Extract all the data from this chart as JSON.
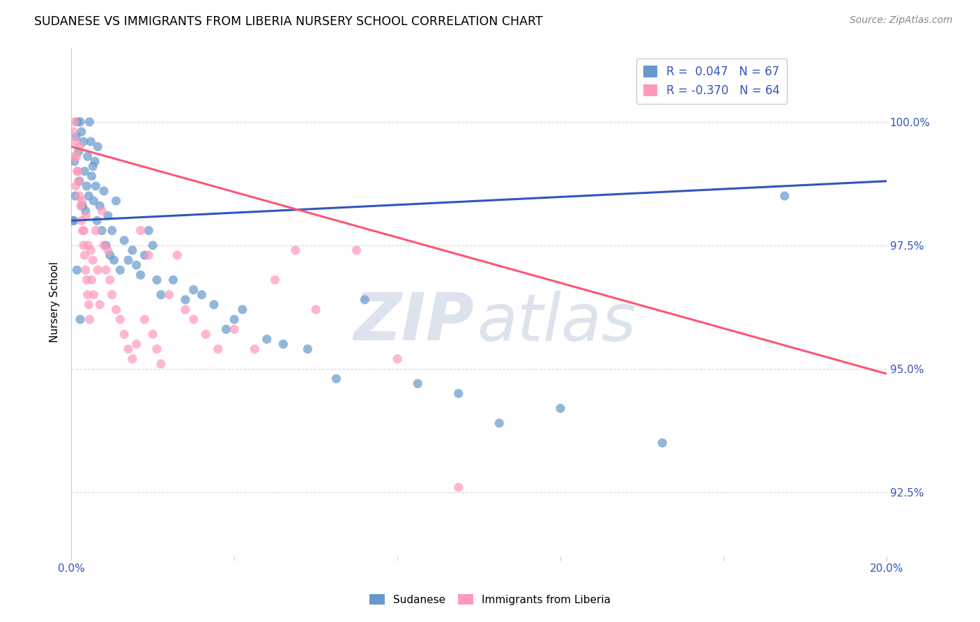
{
  "title": "SUDANESE VS IMMIGRANTS FROM LIBERIA NURSERY SCHOOL CORRELATION CHART",
  "source": "Source: ZipAtlas.com",
  "ylabel": "Nursery School",
  "ytick_values": [
    92.5,
    95.0,
    97.5,
    100.0
  ],
  "xlim": [
    0.0,
    20.0
  ],
  "ylim": [
    91.2,
    101.5
  ],
  "legend_entry1": "R =  0.047   N = 67",
  "legend_entry2": "R = -0.370   N = 64",
  "blue_color": "#6699CC",
  "pink_color": "#FF99BB",
  "trend_blue": "#3355BB",
  "trend_pink": "#FF5577",
  "blue_trend_x": [
    0.0,
    20.0
  ],
  "blue_trend_y": [
    98.0,
    98.8
  ],
  "pink_trend_x": [
    0.0,
    20.0
  ],
  "pink_trend_y": [
    99.5,
    94.9
  ],
  "blue_scatter_x": [
    0.05,
    0.08,
    0.1,
    0.12,
    0.15,
    0.18,
    0.2,
    0.22,
    0.25,
    0.28,
    0.3,
    0.33,
    0.35,
    0.38,
    0.4,
    0.43,
    0.45,
    0.48,
    0.5,
    0.53,
    0.55,
    0.58,
    0.6,
    0.63,
    0.65,
    0.7,
    0.75,
    0.8,
    0.85,
    0.9,
    0.95,
    1.0,
    1.05,
    1.1,
    1.2,
    1.3,
    1.4,
    1.5,
    1.6,
    1.7,
    1.8,
    1.9,
    2.0,
    2.1,
    2.2,
    2.5,
    2.8,
    3.0,
    3.2,
    3.5,
    3.8,
    4.0,
    4.2,
    4.8,
    5.2,
    5.8,
    6.5,
    7.2,
    8.5,
    9.5,
    10.5,
    12.0,
    14.5,
    17.5,
    0.06,
    0.14,
    0.22
  ],
  "blue_scatter_y": [
    98.0,
    99.2,
    98.5,
    99.7,
    100.0,
    99.4,
    98.8,
    100.0,
    99.8,
    98.3,
    99.6,
    99.0,
    98.2,
    98.7,
    99.3,
    98.5,
    100.0,
    99.6,
    98.9,
    99.1,
    98.4,
    99.2,
    98.7,
    98.0,
    99.5,
    98.3,
    97.8,
    98.6,
    97.5,
    98.1,
    97.3,
    97.8,
    97.2,
    98.4,
    97.0,
    97.6,
    97.2,
    97.4,
    97.1,
    96.9,
    97.3,
    97.8,
    97.5,
    96.8,
    96.5,
    96.8,
    96.4,
    96.6,
    96.5,
    96.3,
    95.8,
    96.0,
    96.2,
    95.6,
    95.5,
    95.4,
    94.8,
    96.4,
    94.7,
    94.5,
    93.9,
    94.2,
    93.5,
    98.5,
    98.0,
    97.0,
    96.0
  ],
  "pink_scatter_x": [
    0.05,
    0.08,
    0.1,
    0.13,
    0.15,
    0.18,
    0.2,
    0.23,
    0.25,
    0.28,
    0.3,
    0.33,
    0.35,
    0.38,
    0.4,
    0.43,
    0.45,
    0.48,
    0.5,
    0.53,
    0.55,
    0.6,
    0.65,
    0.7,
    0.75,
    0.8,
    0.85,
    0.9,
    0.95,
    1.0,
    1.1,
    1.2,
    1.3,
    1.4,
    1.5,
    1.6,
    1.7,
    1.8,
    1.9,
    2.0,
    2.1,
    2.2,
    2.4,
    2.6,
    2.8,
    3.0,
    3.3,
    3.6,
    4.0,
    4.5,
    5.0,
    5.5,
    6.0,
    7.0,
    8.0,
    9.5,
    0.07,
    0.11,
    0.16,
    0.21,
    0.26,
    0.31,
    0.36,
    0.41
  ],
  "pink_scatter_y": [
    99.8,
    100.0,
    99.6,
    99.3,
    99.0,
    98.8,
    98.5,
    98.3,
    98.0,
    97.8,
    97.5,
    97.3,
    97.0,
    96.8,
    96.5,
    96.3,
    96.0,
    97.4,
    96.8,
    97.2,
    96.5,
    97.8,
    97.0,
    96.3,
    98.2,
    97.5,
    97.0,
    97.4,
    96.8,
    96.5,
    96.2,
    96.0,
    95.7,
    95.4,
    95.2,
    95.5,
    97.8,
    96.0,
    97.3,
    95.7,
    95.4,
    95.1,
    96.5,
    97.3,
    96.2,
    96.0,
    95.7,
    95.4,
    95.8,
    95.4,
    96.8,
    97.4,
    96.2,
    97.4,
    95.2,
    92.6,
    99.3,
    98.7,
    99.0,
    99.5,
    98.4,
    97.8,
    98.1,
    97.5
  ]
}
